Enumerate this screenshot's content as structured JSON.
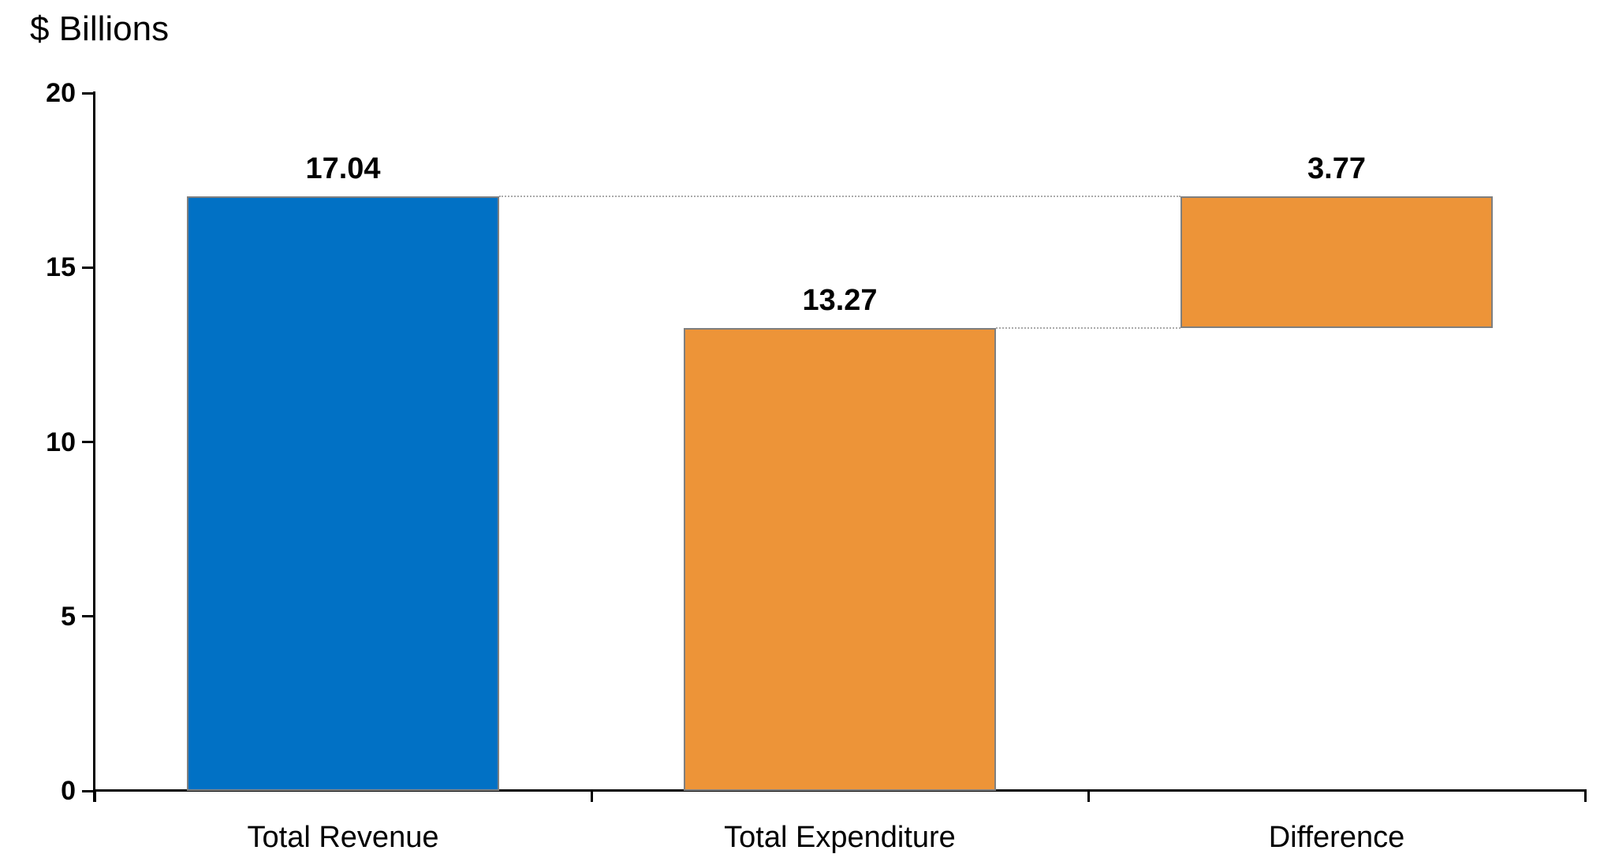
{
  "title": "$ Billions",
  "colors": {
    "revenue_expenditure_bar": "#0171C5",
    "difference_bar": "#ED9438",
    "bar_border": "#7F7F7F",
    "connector": "#ABABAB",
    "axis": "#000000",
    "text": "#000000",
    "background": "#FFFFFF"
  },
  "chart_data": {
    "type": "bar",
    "title": "$ Billions",
    "xlabel": "",
    "ylabel": "$ Billions",
    "ylim": [
      0,
      20
    ],
    "grid": false,
    "legend": "none",
    "categories": [
      "Total Revenue",
      "Total Expenditure",
      "Difference"
    ],
    "values": [
      17.04,
      13.27,
      3.77
    ],
    "bars": [
      {
        "category": "Total Revenue",
        "base": 0,
        "top": 17.04,
        "value": 17.04,
        "label": "17.04",
        "color": "#0171C5"
      },
      {
        "category": "Total Expenditure",
        "base": 0,
        "top": 13.27,
        "value": 13.27,
        "label": "13.27",
        "color": "#ED9438"
      },
      {
        "category": "Difference",
        "base": 13.27,
        "top": 17.04,
        "value": 3.77,
        "label": "3.77",
        "color": "#ED9438"
      }
    ],
    "yticks": [
      {
        "value": 0,
        "label": "0"
      },
      {
        "value": 5,
        "label": "5"
      },
      {
        "value": 10,
        "label": "10"
      },
      {
        "value": 15,
        "label": "15"
      },
      {
        "value": 20,
        "label": "20"
      }
    ],
    "connectors": [
      {
        "level": 17.04,
        "from": "Total Revenue",
        "to": "Difference"
      },
      {
        "level": 13.27,
        "from": "Total Expenditure",
        "to": "Difference"
      }
    ]
  }
}
